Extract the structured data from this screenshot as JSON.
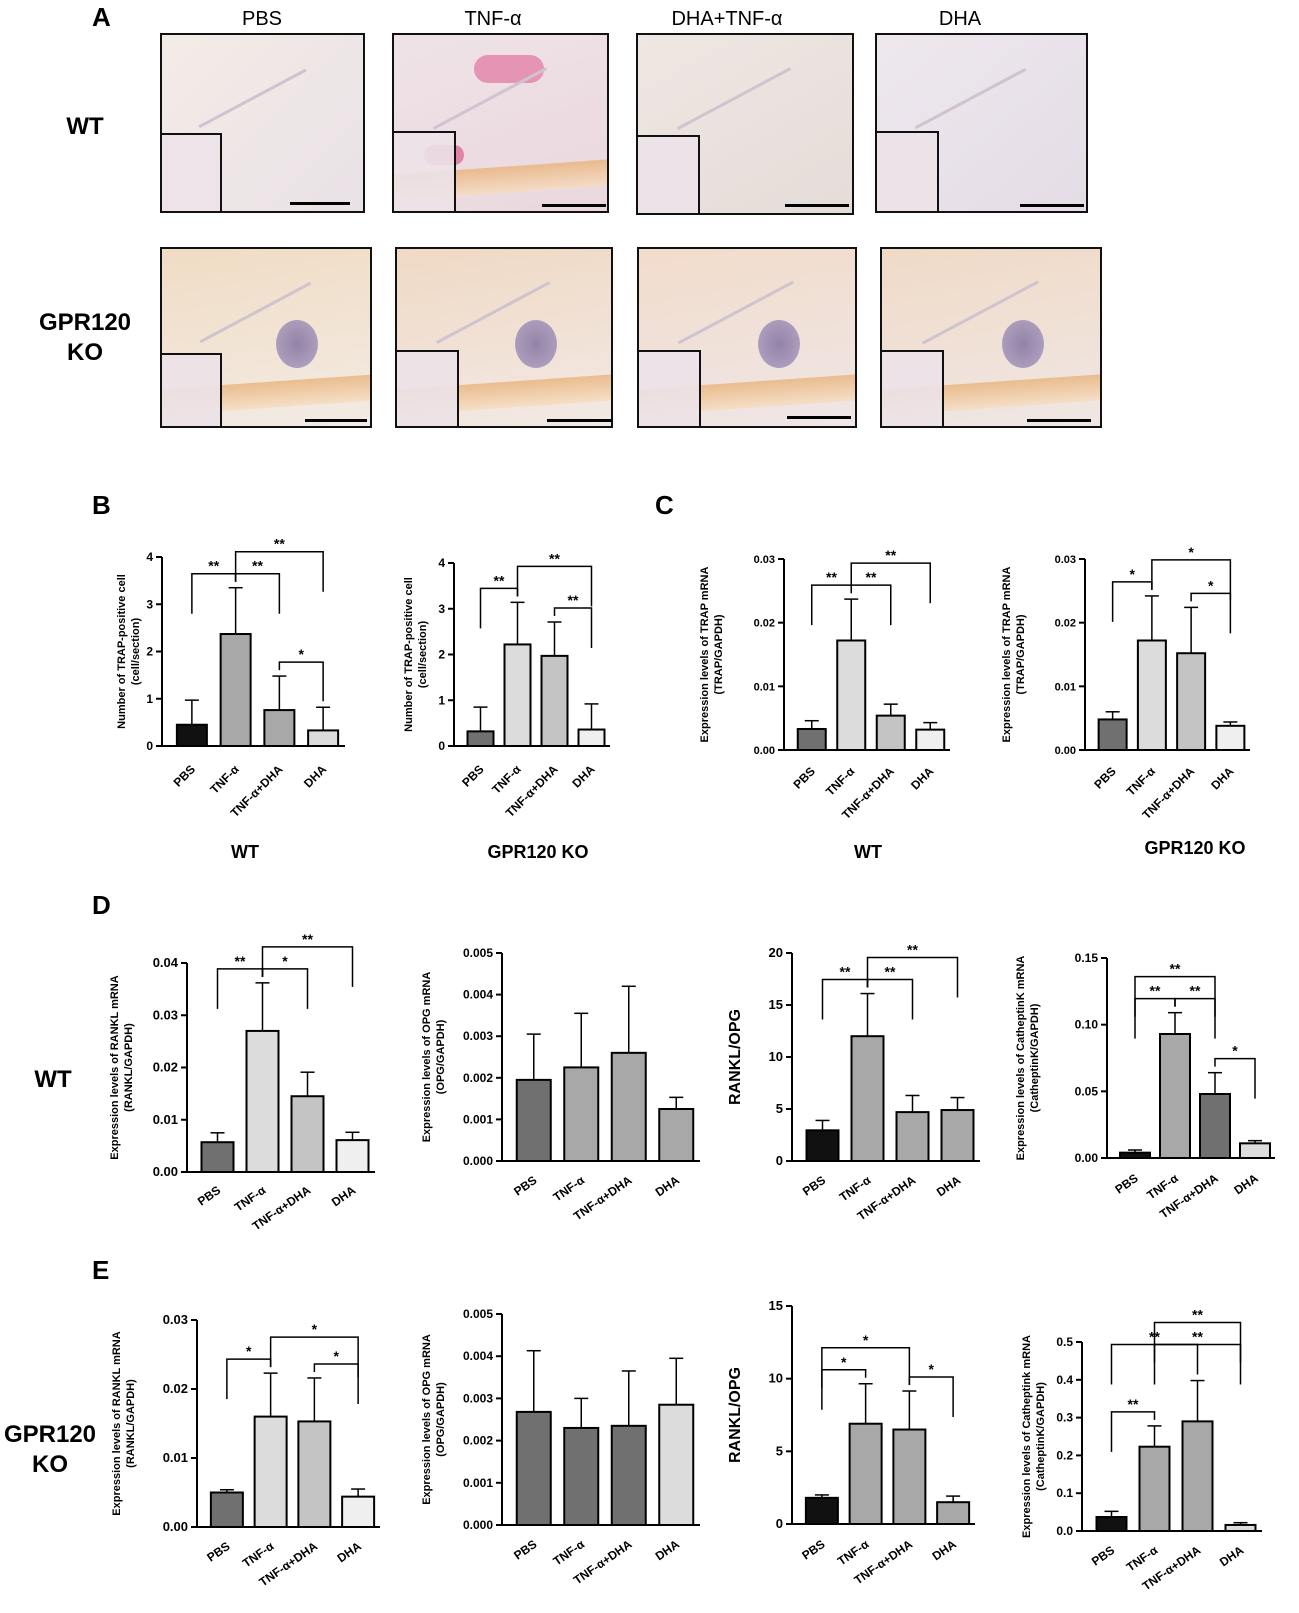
{
  "panel_letters": {
    "A": "A",
    "B": "B",
    "C": "C",
    "D": "D",
    "E": "E"
  },
  "panel_A": {
    "columns": [
      "PBS",
      "TNF-α",
      "DHA+TNF-α",
      "DHA"
    ],
    "rows": [
      {
        "label": "WT"
      },
      {
        "label_line1": "GPR120",
        "label_line2": "KO"
      }
    ]
  },
  "group_labels": {
    "b_wt": "WT",
    "b_ko": "GPR120 KO",
    "c_wt": "WT",
    "c_ko": "GPR120 KO"
  },
  "row_labels": {
    "d": "WT",
    "e_line1": "GPR120",
    "e_line2": "KO"
  },
  "colors": {
    "black": "#111111",
    "dark_gray": "#707070",
    "mid_gray": "#a8a8a8",
    "light_gray": "#dcdcdc",
    "lighter_gray": "#efefef"
  },
  "chart_data": [
    {
      "id": "B_WT",
      "type": "bar",
      "ylabel": "Number of TRAP-positive cell",
      "ylabel2": "(cell/section)",
      "categories": [
        "PBS",
        "TNF-α",
        "TNF-α+DHA",
        "DHA"
      ],
      "values": [
        0.45,
        2.37,
        0.76,
        0.33
      ],
      "errors": [
        0.52,
        0.98,
        0.72,
        0.49
      ],
      "colors": [
        "#111111",
        "#a8a8a8",
        "#a8a8a8",
        "#dcdcdc"
      ],
      "ylim": [
        0,
        4
      ],
      "ticks": [
        "0",
        "1",
        "2",
        "3",
        "4"
      ],
      "sig": [
        {
          "a": 0,
          "b": 1,
          "t": "**"
        },
        {
          "a": 1,
          "b": 2,
          "t": "**"
        },
        {
          "a": 2,
          "b": 3,
          "t": "*"
        },
        {
          "a": 1,
          "b": 3,
          "t": "**"
        }
      ]
    },
    {
      "id": "B_KO",
      "type": "bar",
      "ylabel": "Number of TRAP-positive cell",
      "ylabel2": "(cell/section)",
      "categories": [
        "PBS",
        "TNF-α",
        "TNF-α+DHA",
        "DHA"
      ],
      "values": [
        0.32,
        2.22,
        1.97,
        0.36
      ],
      "errors": [
        0.53,
        0.92,
        0.74,
        0.56
      ],
      "colors": [
        "#707070",
        "#dcdcdc",
        "#c4c4c4",
        "#efefef"
      ],
      "ylim": [
        0,
        4
      ],
      "ticks": [
        "0",
        "1",
        "2",
        "3",
        "4"
      ],
      "sig": [
        {
          "a": 0,
          "b": 1,
          "t": "**"
        },
        {
          "a": 2,
          "b": 3,
          "t": "**"
        },
        {
          "a": 1,
          "b": 3,
          "t": "**"
        }
      ]
    },
    {
      "id": "C_WT",
      "type": "bar",
      "ylabel": "Expression levels of TRAP mRNA",
      "ylabel2": "(TRAP/GAPDH)",
      "categories": [
        "PBS",
        "TNF-α",
        "TNF-α+DHA",
        "DHA"
      ],
      "values": [
        0.0033,
        0.0172,
        0.0054,
        0.0032
      ],
      "errors": [
        0.0013,
        0.0065,
        0.0018,
        0.0011
      ],
      "colors": [
        "#707070",
        "#dcdcdc",
        "#c4c4c4",
        "#efefef"
      ],
      "ylim": [
        0,
        0.03
      ],
      "ticks": [
        "0.00",
        "0.01",
        "0.02",
        "0.03"
      ],
      "sig": [
        {
          "a": 0,
          "b": 1,
          "t": "**"
        },
        {
          "a": 1,
          "b": 2,
          "t": "**"
        },
        {
          "a": 1,
          "b": 3,
          "t": "**"
        }
      ]
    },
    {
      "id": "C_KO",
      "type": "bar",
      "ylabel": "Expression levels of TRAP mRNA",
      "ylabel2": "(TRAP/GAPDH)",
      "categories": [
        "PBS",
        "TNF-α",
        "TNF-α+DHA",
        "DHA"
      ],
      "values": [
        0.0048,
        0.0172,
        0.0152,
        0.0038
      ],
      "errors": [
        0.0012,
        0.007,
        0.0072,
        0.0006
      ],
      "colors": [
        "#707070",
        "#dcdcdc",
        "#c4c4c4",
        "#efefef"
      ],
      "ylim": [
        0,
        0.03
      ],
      "ticks": [
        "0.00",
        "0.01",
        "0.02",
        "0.03"
      ],
      "sig": [
        {
          "a": 0,
          "b": 1,
          "t": "*"
        },
        {
          "a": 2,
          "b": 3,
          "t": "*"
        },
        {
          "a": 1,
          "b": 3,
          "t": "*"
        }
      ]
    },
    {
      "id": "D_RANKL",
      "type": "bar",
      "ylabel": "Expression levels of RANKL mRNA",
      "ylabel2": "(RANKL/GAPDH)",
      "categories": [
        "PBS",
        "TNF-α",
        "TNF-α+DHA",
        "DHA"
      ],
      "values": [
        0.0057,
        0.027,
        0.0145,
        0.0061
      ],
      "errors": [
        0.0018,
        0.0092,
        0.0046,
        0.0015
      ],
      "colors": [
        "#707070",
        "#dcdcdc",
        "#c4c4c4",
        "#efefef"
      ],
      "ylim": [
        0,
        0.04
      ],
      "ticks": [
        "0.00",
        "0.01",
        "0.02",
        "0.03",
        "0.04"
      ],
      "sig": [
        {
          "a": 0,
          "b": 1,
          "t": "**"
        },
        {
          "a": 1,
          "b": 2,
          "t": "*"
        },
        {
          "a": 1,
          "b": 3,
          "t": "**"
        }
      ]
    },
    {
      "id": "D_OPG",
      "type": "bar",
      "ylabel": "Expression levels of OPG mRNA",
      "ylabel2": "(OPG/GAPDH)",
      "categories": [
        "PBS",
        "TNF-α",
        "TNF-α+DHA",
        "DHA"
      ],
      "values": [
        0.00195,
        0.00225,
        0.0026,
        0.00125
      ],
      "errors": [
        0.0011,
        0.0013,
        0.0016,
        0.00028
      ],
      "colors": [
        "#707070",
        "#a8a8a8",
        "#a8a8a8",
        "#a8a8a8"
      ],
      "ylim": [
        0,
        0.005
      ],
      "ticks": [
        "0.000",
        "0.001",
        "0.002",
        "0.003",
        "0.004",
        "0.005"
      ],
      "sig": []
    },
    {
      "id": "D_RATIO",
      "type": "bar",
      "ylabel": "RANKL/OPG",
      "ylabel2": "",
      "categories": [
        "PBS",
        "TNF-α",
        "TNF-α+DHA",
        "DHA"
      ],
      "values": [
        2.95,
        12.0,
        4.7,
        4.9
      ],
      "errors": [
        0.95,
        4.1,
        1.6,
        1.2
      ],
      "colors": [
        "#111111",
        "#a8a8a8",
        "#a8a8a8",
        "#a8a8a8"
      ],
      "ylim": [
        0,
        20
      ],
      "ticks": [
        "0",
        "5",
        "10",
        "15",
        "20"
      ],
      "sig": [
        {
          "a": 0,
          "b": 1,
          "t": "**"
        },
        {
          "a": 1,
          "b": 2,
          "t": "**"
        },
        {
          "a": 1,
          "b": 3,
          "t": "**"
        }
      ]
    },
    {
      "id": "D_CATK",
      "type": "bar",
      "ylabel": "Expression levels of CatheptinK mRNA",
      "ylabel2": "(CatheptinK/GAPDH)",
      "categories": [
        "PBS",
        "TNF-α",
        "TNF-α+DHA",
        "DHA"
      ],
      "values": [
        0.004,
        0.093,
        0.048,
        0.011
      ],
      "errors": [
        0.002,
        0.016,
        0.016,
        0.002
      ],
      "colors": [
        "#111111",
        "#a8a8a8",
        "#707070",
        "#dcdcdc"
      ],
      "ylim": [
        0,
        0.15
      ],
      "ticks": [
        "0.00",
        "0.05",
        "0.10",
        "0.15"
      ],
      "sig": [
        {
          "a": 0,
          "b": 1,
          "t": "**"
        },
        {
          "a": 1,
          "b": 2,
          "t": "**"
        },
        {
          "a": 2,
          "b": 3,
          "t": "*"
        },
        {
          "a": 0,
          "b": 2,
          "t": "**"
        }
      ]
    },
    {
      "id": "E_RANKL",
      "type": "bar",
      "ylabel": "Expression levels of RANKL mRNA",
      "ylabel2": "(RANKL/GAPDH)",
      "categories": [
        "PBS",
        "TNF-α",
        "TNF-α+DHA",
        "DHA"
      ],
      "values": [
        0.005,
        0.016,
        0.0153,
        0.0044
      ],
      "errors": [
        0.0004,
        0.0063,
        0.0063,
        0.0011
      ],
      "colors": [
        "#707070",
        "#dcdcdc",
        "#c4c4c4",
        "#efefef"
      ],
      "ylim": [
        0,
        0.03
      ],
      "ticks": [
        "0.00",
        "0.01",
        "0.02",
        "0.03"
      ],
      "sig": [
        {
          "a": 0,
          "b": 1,
          "t": "*"
        },
        {
          "a": 2,
          "b": 3,
          "t": "*"
        },
        {
          "a": 1,
          "b": 3,
          "t": "*"
        }
      ]
    },
    {
      "id": "E_OPG",
      "type": "bar",
      "ylabel": "Expression levels of OPG mRNA",
      "ylabel2": "(OPG/GAPDH)",
      "categories": [
        "PBS",
        "TNF-α",
        "TNF-α+DHA",
        "DHA"
      ],
      "values": [
        0.00268,
        0.0023,
        0.00235,
        0.00285
      ],
      "errors": [
        0.00145,
        0.0007,
        0.0013,
        0.0011
      ],
      "colors": [
        "#707070",
        "#707070",
        "#707070",
        "#dcdcdc"
      ],
      "ylim": [
        0,
        0.005
      ],
      "ticks": [
        "0.000",
        "0.001",
        "0.002",
        "0.003",
        "0.004",
        "0.005"
      ],
      "sig": []
    },
    {
      "id": "E_RATIO",
      "type": "bar",
      "ylabel": "RANKL/OPG",
      "ylabel2": "",
      "categories": [
        "PBS",
        "TNF-α",
        "TNF-α+DHA",
        "DHA"
      ],
      "values": [
        1.8,
        6.9,
        6.5,
        1.5
      ],
      "errors": [
        0.2,
        2.75,
        2.65,
        0.42
      ],
      "colors": [
        "#111111",
        "#a8a8a8",
        "#a8a8a8",
        "#a8a8a8"
      ],
      "ylim": [
        0,
        15
      ],
      "ticks": [
        "0",
        "5",
        "10",
        "15"
      ],
      "sig": [
        {
          "a": 0,
          "b": 1,
          "t": "*"
        },
        {
          "a": 2,
          "b": 3,
          "t": "*"
        },
        {
          "a": 0,
          "b": 2,
          "t": "*"
        }
      ]
    },
    {
      "id": "E_CATK",
      "type": "bar",
      "ylabel": "Expression levels of Catheptink mRNA",
      "ylabel2": "(CatheptinK/GAPDH)",
      "categories": [
        "PBS",
        "TNF-α",
        "TNF-α+DHA",
        "DHA"
      ],
      "values": [
        0.037,
        0.223,
        0.29,
        0.016
      ],
      "errors": [
        0.015,
        0.055,
        0.108,
        0.006
      ],
      "colors": [
        "#111111",
        "#a8a8a8",
        "#a8a8a8",
        "#dcdcdc"
      ],
      "ylim": [
        0,
        0.5
      ],
      "ticks": [
        "0.0",
        "0.1",
        "0.2",
        "0.3",
        "0.4",
        "0.5"
      ],
      "sig": [
        {
          "a": 0,
          "b": 1,
          "t": "**"
        },
        {
          "a": 1,
          "b": 3,
          "t": "**"
        },
        {
          "a": 0,
          "b": 2,
          "t": "**"
        },
        {
          "a": 1,
          "b": 3,
          "t": "**",
          "lvl": 2
        }
      ]
    }
  ]
}
